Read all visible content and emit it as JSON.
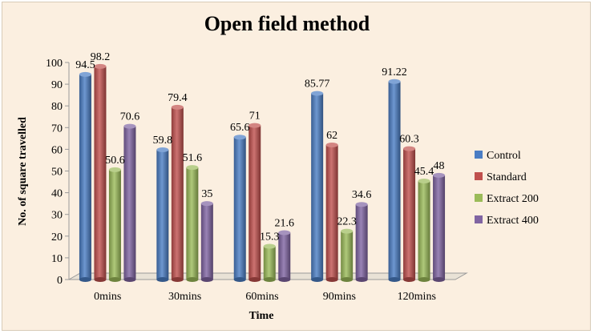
{
  "chart_data": {
    "type": "bar",
    "title": "Open field method",
    "xlabel": "Time",
    "ylabel": "No. of square travelled",
    "categories": [
      "0mins",
      "30mins",
      "60mins",
      "90mins",
      "120mins"
    ],
    "ylim": [
      0,
      100
    ],
    "yticks": [
      0,
      10,
      20,
      30,
      40,
      50,
      60,
      70,
      80,
      90,
      100
    ],
    "legend_position": "right",
    "series": [
      {
        "name": "Control",
        "color": "#4a7dc4",
        "values": [
          94.5,
          59.8,
          65.6,
          85.77,
          91.22
        ],
        "labels": [
          "94.5",
          "59.8",
          "65.6",
          "85.77",
          "91.22"
        ]
      },
      {
        "name": "Standard",
        "color": "#c0504d",
        "values": [
          98.2,
          79.4,
          71,
          62,
          60.3
        ],
        "labels": [
          "98.2",
          "79.4",
          "71",
          "62",
          "60.3"
        ]
      },
      {
        "name": "Extract 200",
        "color": "#9bbb59",
        "values": [
          50.6,
          51.6,
          15.3,
          22.3,
          45.4
        ],
        "labels": [
          "50.6",
          "51.6",
          "15.3",
          "22.3",
          "45.4"
        ]
      },
      {
        "name": "Extract 400",
        "color": "#8064a2",
        "values": [
          70.6,
          35,
          21.6,
          34.6,
          48
        ],
        "labels": [
          "70.6",
          "35",
          "21.6",
          "34.6",
          "48"
        ]
      }
    ]
  }
}
